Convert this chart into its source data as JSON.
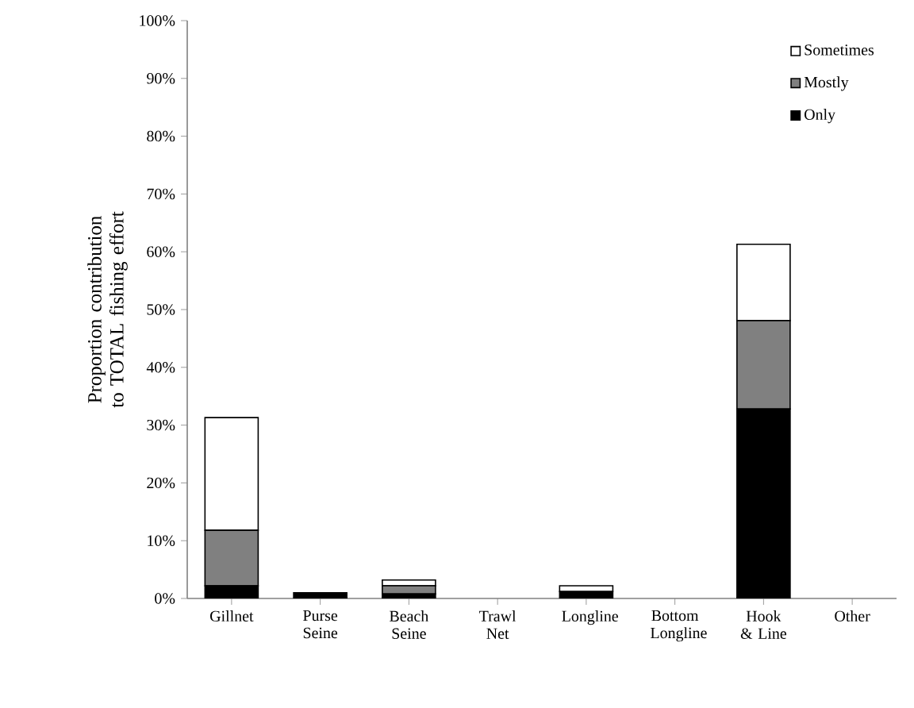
{
  "chart_data": {
    "type": "bar",
    "stacked": true,
    "ylabel": "Proportion contribution to TOTAL  fishing effort",
    "categories": [
      "Gillnet",
      "Purse Seine",
      "Beach Seine",
      "Trawl Net",
      "Longline",
      "Bottom Longline",
      "Hook & Line",
      "Other"
    ],
    "series": [
      {
        "name": "Only",
        "color": "#000000",
        "values": [
          2.2,
          1.0,
          0.8,
          0,
          1.2,
          0,
          32.8,
          0
        ]
      },
      {
        "name": "Mostly",
        "color": "#808080",
        "values": [
          9.6,
          0,
          1.4,
          0,
          0,
          0,
          15.3,
          0
        ]
      },
      {
        "name": "Sometimes",
        "color": "#ffffff",
        "values": [
          19.5,
          0,
          1.0,
          0,
          1.0,
          0,
          13.2,
          0
        ]
      }
    ],
    "ylim": [
      0,
      100
    ],
    "yticks": [
      {
        "value": 0,
        "label": "0%"
      },
      {
        "value": 10,
        "label": "10%"
      },
      {
        "value": 20,
        "label": "20%"
      },
      {
        "value": 30,
        "label": "30%"
      },
      {
        "value": 40,
        "label": "40%"
      },
      {
        "value": 50,
        "label": "50%"
      },
      {
        "value": 60,
        "label": "60%"
      },
      {
        "value": 70,
        "label": "70%"
      },
      {
        "value": 80,
        "label": "80%"
      },
      {
        "value": 90,
        "label": "90%"
      },
      {
        "value": 100,
        "label": "100%"
      }
    ],
    "grid": false,
    "legend": "top right"
  }
}
